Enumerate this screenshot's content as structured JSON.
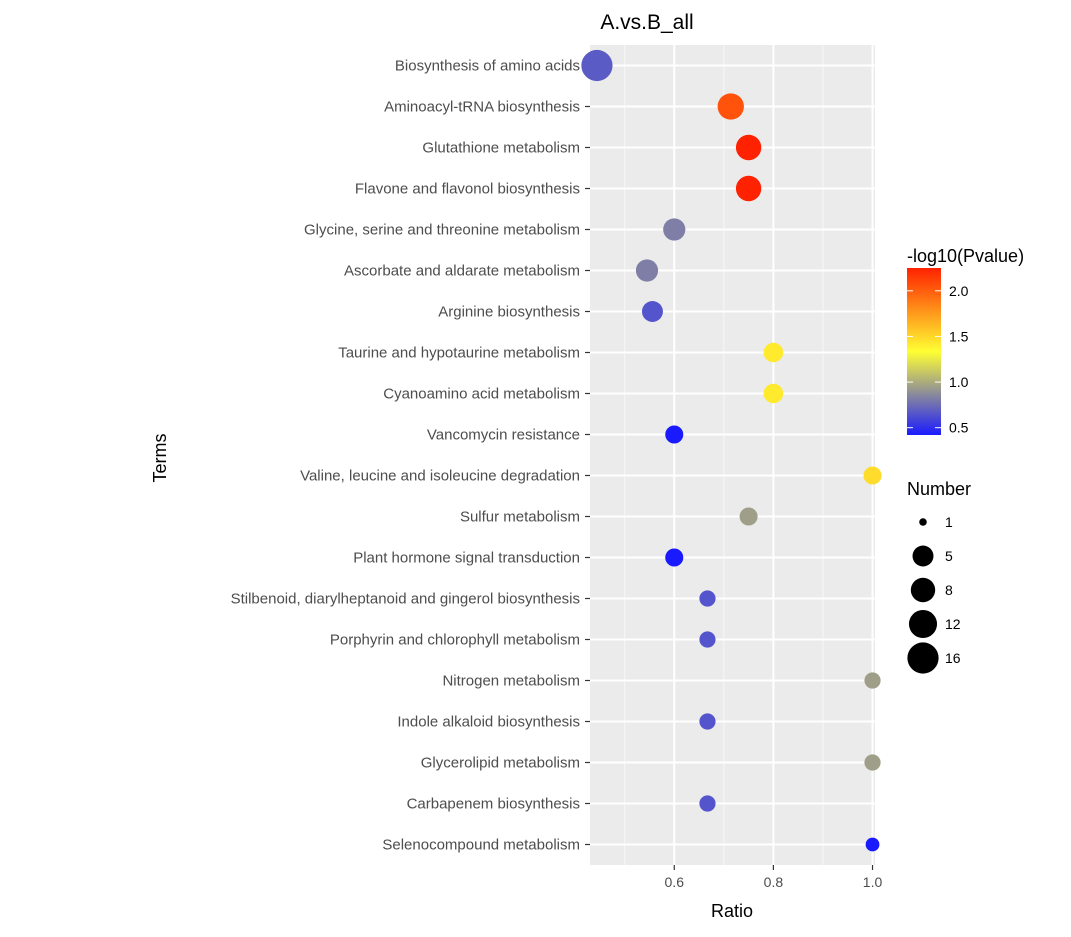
{
  "chart_data": {
    "type": "scatter",
    "title": "A.vs.B_all",
    "xlabel": "Ratio",
    "ylabel": "Terms",
    "xlim": [
      0.43,
      1.005
    ],
    "xticks": [
      0.6,
      0.8,
      1.0
    ],
    "xtick_labels": [
      "0.6",
      "0.8",
      "1.0"
    ],
    "grid": true,
    "points": [
      {
        "term": "Biosynthesis of amino acids",
        "ratio": 0.444,
        "number": 16,
        "neglog10p": 0.68
      },
      {
        "term": "Aminoacyl-tRNA biosynthesis",
        "ratio": 0.714,
        "number": 10,
        "neglog10p": 2.05
      },
      {
        "term": "Glutathione metabolism",
        "ratio": 0.75,
        "number": 9,
        "neglog10p": 2.25
      },
      {
        "term": "Flavone and flavonol biosynthesis",
        "ratio": 0.75,
        "number": 9,
        "neglog10p": 2.25
      },
      {
        "term": "Glycine, serine and threonine metabolism",
        "ratio": 0.6,
        "number": 6,
        "neglog10p": 0.82
      },
      {
        "term": "Ascorbate and aldarate metabolism",
        "ratio": 0.545,
        "number": 6,
        "neglog10p": 0.82
      },
      {
        "term": "Arginine biosynthesis",
        "ratio": 0.556,
        "number": 5,
        "neglog10p": 0.65
      },
      {
        "term": "Taurine and hypotaurine metabolism",
        "ratio": 0.8,
        "number": 4,
        "neglog10p": 1.42
      },
      {
        "term": "Cyanoamino acid metabolism",
        "ratio": 0.8,
        "number": 4,
        "neglog10p": 1.42
      },
      {
        "term": "Vancomycin resistance",
        "ratio": 0.6,
        "number": 3,
        "neglog10p": 0.42
      },
      {
        "term": "Valine, leucine and isoleucine degradation",
        "ratio": 1.0,
        "number": 3,
        "neglog10p": 1.48
      },
      {
        "term": "Sulfur metabolism",
        "ratio": 0.75,
        "number": 3,
        "neglog10p": 0.95
      },
      {
        "term": "Plant hormone signal transduction",
        "ratio": 0.6,
        "number": 3,
        "neglog10p": 0.42
      },
      {
        "term": "Stilbenoid, diarylheptanoid and gingerol biosynthesis",
        "ratio": 0.667,
        "number": 2,
        "neglog10p": 0.65
      },
      {
        "term": "Porphyrin and chlorophyll metabolism",
        "ratio": 0.667,
        "number": 2,
        "neglog10p": 0.65
      },
      {
        "term": "Nitrogen metabolism",
        "ratio": 1.0,
        "number": 2,
        "neglog10p": 0.95
      },
      {
        "term": "Indole alkaloid biosynthesis",
        "ratio": 0.667,
        "number": 2,
        "neglog10p": 0.65
      },
      {
        "term": "Glycerolipid metabolism",
        "ratio": 1.0,
        "number": 2,
        "neglog10p": 0.95
      },
      {
        "term": "Carbapenem biosynthesis",
        "ratio": 0.667,
        "number": 2,
        "neglog10p": 0.65
      },
      {
        "term": "Selenocompound metabolism",
        "ratio": 1.0,
        "number": 1,
        "neglog10p": 0.42
      }
    ],
    "color_legend": {
      "title": "-log10(Pvalue)",
      "range": [
        0.42,
        2.25
      ],
      "ticks": [
        0.5,
        1.0,
        1.5,
        2.0
      ],
      "tick_labels": [
        "0.5",
        "1.0",
        "1.5",
        "2.0"
      ],
      "low_color": "#1a1aff",
      "mid_color": "#ffff33",
      "high_color": "#ff2200"
    },
    "size_legend": {
      "title": "Number",
      "values": [
        1,
        5,
        8,
        12,
        16
      ],
      "labels": [
        "1",
        "5",
        "8",
        "12",
        "16"
      ]
    },
    "panel_background": "#ebebeb"
  }
}
